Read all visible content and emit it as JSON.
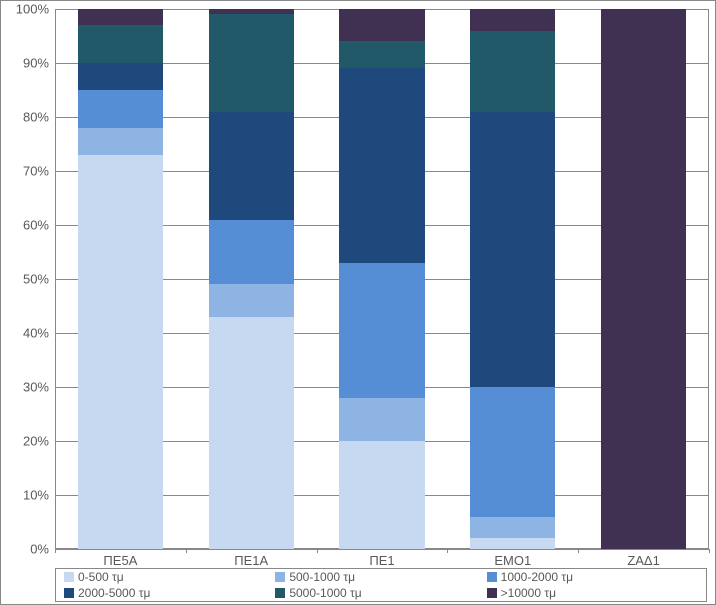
{
  "chart": {
    "type": "stacked-bar-100",
    "background_color": "#ffffff",
    "border_color": "#888888",
    "plot_background": "#ffffff",
    "grid_color": "#888888",
    "text_color": "#595959",
    "font_size_axis": 13,
    "font_size_legend": 12,
    "ylim": [
      0,
      100
    ],
    "ytick_step": 10,
    "yticks": [
      {
        "value": 0,
        "label": "0%"
      },
      {
        "value": 10,
        "label": "10%"
      },
      {
        "value": 20,
        "label": "20%"
      },
      {
        "value": 30,
        "label": "30%"
      },
      {
        "value": 40,
        "label": "40%"
      },
      {
        "value": 50,
        "label": "50%"
      },
      {
        "value": 60,
        "label": "60%"
      },
      {
        "value": 70,
        "label": "70%"
      },
      {
        "value": 80,
        "label": "80%"
      },
      {
        "value": 90,
        "label": "90%"
      },
      {
        "value": 100,
        "label": "100%"
      }
    ],
    "categories": [
      "ΠΕ5Α",
      "ΠΕ1Α",
      "ΠΕ1",
      "ΕΜΟ1",
      "ΖΑΔ1"
    ],
    "series": [
      {
        "name": "0-500 τμ",
        "color": "#c6d9f1"
      },
      {
        "name": "500-1000 τμ",
        "color": "#8eb4e3"
      },
      {
        "name": "1000-2000 τμ",
        "color": "#558ed5"
      },
      {
        "name": "2000-5000 τμ",
        "color": "#1f497d"
      },
      {
        "name": "5000-1000 τμ",
        "color": "#215968"
      },
      {
        "name": ">10000 τμ",
        "color": "#403152"
      }
    ],
    "values_pct": [
      [
        73,
        5,
        7,
        5,
        7,
        3
      ],
      [
        43,
        6,
        12,
        20,
        18,
        1
      ],
      [
        20,
        8,
        25,
        36,
        5,
        6
      ],
      [
        2,
        4,
        24,
        51,
        15,
        4
      ],
      [
        0,
        0,
        0,
        0,
        0,
        100
      ]
    ],
    "bar_width_ratio": 0.65,
    "legend_columns": 3
  }
}
